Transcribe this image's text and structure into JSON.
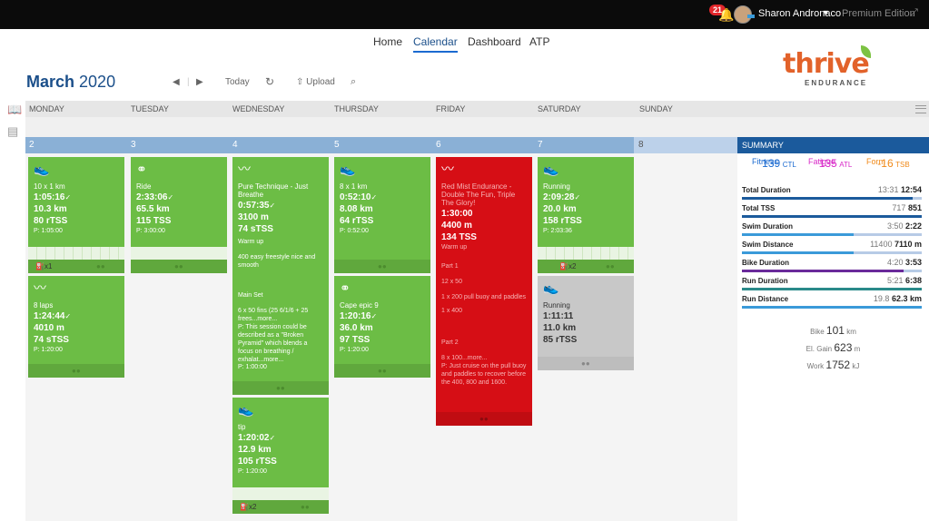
{
  "topbar": {
    "notifications": "21",
    "user": "Sharon Andronaco",
    "edition": "Premium Edition"
  },
  "nav": {
    "home": "Home",
    "calendar": "Calendar",
    "dashboard": "Dashboard",
    "atp": "ATP"
  },
  "logo": {
    "name": "thrive",
    "tagline": "ENDURANCE"
  },
  "toolbar": {
    "month": "March",
    "year": "2020",
    "today": "Today",
    "upload": "Upload"
  },
  "days": [
    "MONDAY",
    "TUESDAY",
    "WEDNESDAY",
    "THURSDAY",
    "FRIDAY",
    "SATURDAY",
    "SUNDAY"
  ],
  "dates": [
    "2",
    "3",
    "4",
    "5",
    "6",
    "7",
    "8"
  ],
  "workouts": {
    "mon1": {
      "title": "10 x 1 km",
      "duration": "1:05:16",
      "distance": "10.3 km",
      "tss": "80 rTSS",
      "planned": "P: 1:05:00",
      "count": "x1"
    },
    "mon2": {
      "title": "8 laps",
      "duration": "1:24:44",
      "distance": "4010 m",
      "tss": "74 sTSS",
      "planned": "P: 1:20:00"
    },
    "tue1": {
      "title": "Ride",
      "duration": "2:33:06",
      "distance": "65.5 km",
      "tss": "115 TSS",
      "planned": "P: 3:00:00"
    },
    "wed1": {
      "title": "Pure Technique - Just Breathe",
      "duration": "0:57:35",
      "distance": "3100 m",
      "tss": "74 sTSS",
      "d1": "Warm up",
      "d2": "400 easy freestyle nice and smooth",
      "d3": "Main Set",
      "d4": "6 x 50 fins (25 6/1/6 + 25 frees...more...",
      "d5": "P: This session could be described as a \"Broken Pyramid\" which blends a focus on breathing / exhalat...more...",
      "planned": "P: 1:00:00"
    },
    "wed2": {
      "title": "tip",
      "duration": "1:20:02",
      "distance": "12.9 km",
      "tss": "105 rTSS",
      "planned": "P: 1:20:00",
      "count": "x2"
    },
    "thu1": {
      "title": "8 x 1 km",
      "duration": "0:52:10",
      "distance": "8.08 km",
      "tss": "64 rTSS",
      "planned": "P: 0:52:00"
    },
    "thu2": {
      "title": "Cape epic 9",
      "duration": "1:20:16",
      "distance": "36.0 km",
      "tss": "97 TSS",
      "planned": "P: 1:20:00"
    },
    "fri1": {
      "title": "Red Mist Endurance - Double The Fun, Triple The Glory!",
      "duration": "1:30:00",
      "distance": "4400 m",
      "tss": "134 TSS",
      "d1": "Warm up",
      "d2": "Part 1",
      "d3": "12 x 50",
      "d4": "1 x 200 pull buoy and paddles",
      "d5": "1 x 400",
      "d6": "Part 2",
      "d7": "8 x 100...more...",
      "d8": "P: Just cruise on the pull buoy and paddles to recover before the 400, 800 and 1600."
    },
    "sat1": {
      "title": "Running",
      "duration": "2:09:28",
      "distance": "20.0 km",
      "tss": "158 rTSS",
      "planned": "P: 2:03:36",
      "count": "x2"
    },
    "sat2": {
      "title": "Running",
      "duration": "1:11:11",
      "distance": "11.0 km",
      "tss": "85 rTSS"
    }
  },
  "summary": {
    "title": "SUMMARY",
    "fitness_label": "Fitness",
    "fitness_val": "139",
    "fitness_unit": "CTL",
    "fatigue_label": "Fatigue",
    "fatigue_val": "135",
    "fatigue_unit": "ATL",
    "form_label": "Form",
    "form_val": "-16",
    "form_unit": "TSB",
    "rows": [
      {
        "label": "Total Duration",
        "planned": "13:31",
        "actual": "12:54",
        "pct": 0.95,
        "color": "#1b5a9c"
      },
      {
        "label": "Total TSS",
        "planned": "717",
        "actual": "851",
        "pct": 1.0,
        "color": "#1b5a9c"
      },
      {
        "label": "Swim Duration",
        "planned": "3:50",
        "actual": "2:22",
        "pct": 0.62,
        "color": "#3a9ad9"
      },
      {
        "label": "Swim Distance",
        "planned": "11400",
        "actual": "7110 m",
        "pct": 0.62,
        "color": "#3a9ad9"
      },
      {
        "label": "Bike Duration",
        "planned": "4:20",
        "actual": "3:53",
        "pct": 0.9,
        "color": "#6a2a9a"
      },
      {
        "label": "Run Duration",
        "planned": "5:21",
        "actual": "6:38",
        "pct": 1.0,
        "color": "#2a8a8a"
      },
      {
        "label": "Run Distance",
        "planned": "19.8",
        "actual": "62.3 km",
        "pct": 1.0,
        "color": "#3a9ad9"
      }
    ],
    "bike_label": "Bike",
    "bike_val": "101",
    "bike_unit": "km",
    "gain_label": "El. Gain",
    "gain_val": "623",
    "gain_unit": "m",
    "work_label": "Work",
    "work_val": "1752",
    "work_unit": "kJ"
  }
}
